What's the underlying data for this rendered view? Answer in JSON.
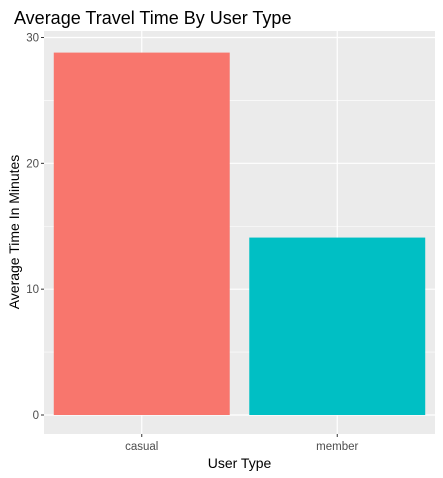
{
  "chart_data": {
    "type": "bar",
    "title": "Average Travel Time By User Type",
    "xlabel": "User Type",
    "ylabel": "Average Time In Minutes",
    "categories": [
      "casual",
      "member"
    ],
    "values": [
      28.8,
      14.1
    ],
    "colors": [
      "#F8766D",
      "#00BFC4"
    ],
    "ylim": [
      0,
      30.3
    ],
    "yticks": [
      0,
      10,
      20,
      30
    ],
    "y_minor_ticks": [
      5,
      15,
      25
    ],
    "grid": true,
    "legend": "none",
    "panel_background": "#EBEBEB",
    "grid_color": "#FFFFFF"
  }
}
